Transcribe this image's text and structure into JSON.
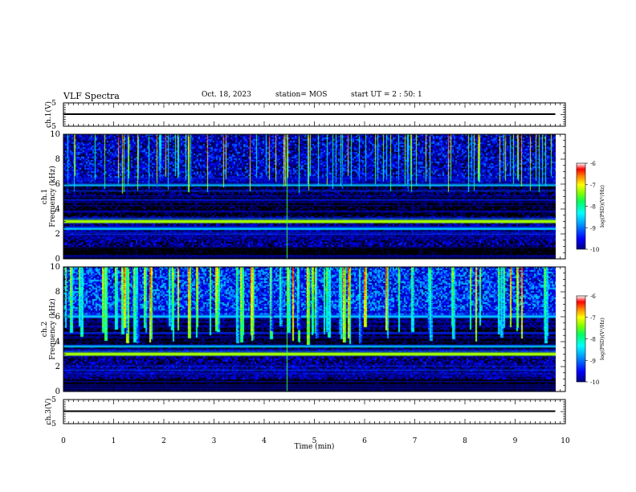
{
  "header": {
    "title": "VLF Spectra",
    "date": "Oct. 18, 2023",
    "station": "station= MOS",
    "start": "start  UT =  2 : 50: 1"
  },
  "chart_data": [
    {
      "type": "line",
      "title": "",
      "ylabel": "ch.1(V)",
      "ylim": [
        -5,
        5
      ],
      "yticks": [
        "5",
        "-5"
      ],
      "series": [
        {
          "x": [
            0,
            9.8
          ],
          "values": [
            0,
            0
          ]
        }
      ]
    },
    {
      "type": "heatmap",
      "ylabel": "ch.1\nFrequency (kHz)",
      "ylabel_lines": [
        "ch.1",
        "Frequency (kHz)"
      ],
      "ylim": [
        0,
        10
      ],
      "yticks": [
        0,
        2,
        4,
        6,
        8,
        10
      ],
      "colorbar": {
        "label": "log(PSD)(V²/Hz)",
        "range": [
          -10,
          -6
        ],
        "ticks": [
          "-6",
          "-7",
          "-8",
          "-9",
          "-10"
        ]
      },
      "bands_khz": [
        3.0,
        2.4,
        5.9
      ]
    },
    {
      "type": "heatmap",
      "ylabel": "ch.2\nFrequency (kHz)",
      "ylabel_lines": [
        "ch.2",
        "Frequency (kHz)"
      ],
      "ylim": [
        0,
        10
      ],
      "yticks": [
        0,
        2,
        4,
        6,
        8,
        10
      ],
      "colorbar": {
        "label": "log(PSD)(V²/Hz)",
        "range": [
          -10,
          -6
        ],
        "ticks": [
          "-6",
          "-7",
          "-8",
          "-9",
          "-10"
        ]
      },
      "bands_khz": [
        3.0,
        3.6,
        6.0
      ]
    },
    {
      "type": "line",
      "ylabel": "ch.3(V)",
      "ylim": [
        -5,
        5
      ],
      "yticks": [
        "5",
        "-5"
      ],
      "series": [
        {
          "x": [
            0,
            9.8
          ],
          "values": [
            0,
            0
          ]
        }
      ],
      "xlabel": "Time (min)",
      "xlim": [
        0,
        10
      ],
      "xticks": [
        "0",
        "1",
        "2",
        "3",
        "4",
        "5",
        "6",
        "7",
        "8",
        "9",
        "10"
      ]
    }
  ],
  "colors": {
    "spectrum_scale": [
      "#000000",
      "#00007f",
      "#0000ff",
      "#00a0ff",
      "#00ffff",
      "#00ff80",
      "#80ff00",
      "#ffff00",
      "#ff8000",
      "#ff0000",
      "#ffffff"
    ],
    "axis": "#000000",
    "background": "#ffffff"
  }
}
